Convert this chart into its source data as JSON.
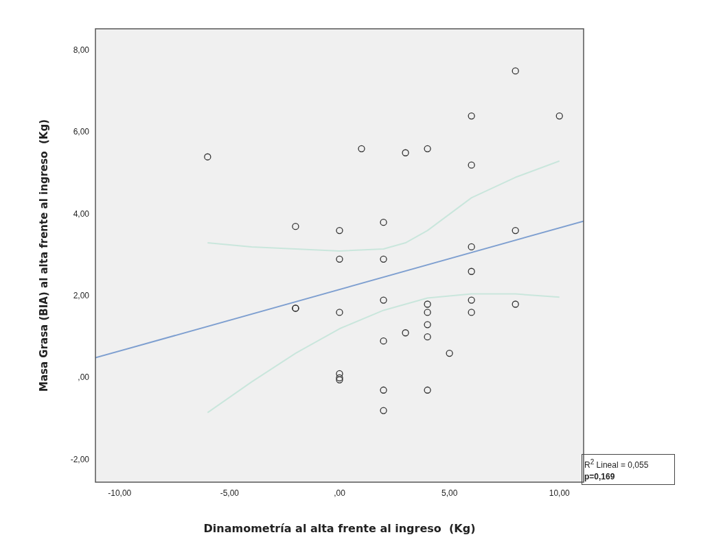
{
  "chart_data": {
    "type": "scatter",
    "xlabel": "Dinamometría al alta frente al ingreso  (Kg)",
    "ylabel": "Masa Grasa (BIA) al alta frente al ingreso  (Kg)",
    "xlim": [
      -11.1,
      11.1
    ],
    "ylim": [
      -2.55,
      8.53
    ],
    "xticks": [
      {
        "value": -10,
        "label": "-10,00"
      },
      {
        "value": -5,
        "label": "-5,00"
      },
      {
        "value": 0,
        "label": ",00"
      },
      {
        "value": 5,
        "label": "5,00"
      },
      {
        "value": 10,
        "label": "10,00"
      }
    ],
    "yticks": [
      {
        "value": -2,
        "label": "-2,00"
      },
      {
        "value": 0,
        "label": ",00"
      },
      {
        "value": 2,
        "label": "2,00"
      },
      {
        "value": 4,
        "label": "4,00"
      },
      {
        "value": 6,
        "label": "6,00"
      },
      {
        "value": 8,
        "label": "8,00"
      }
    ],
    "grid": false,
    "legend": false,
    "series": [
      {
        "color": "#333333",
        "marker": "circle",
        "x": [
          -6,
          1,
          3,
          4,
          6,
          8,
          10,
          6,
          -2,
          0,
          2,
          0,
          2,
          -2,
          -2,
          0,
          2,
          2,
          3,
          0,
          0,
          0,
          2,
          2,
          8,
          6,
          6,
          6,
          6,
          8,
          4,
          4,
          4,
          4,
          5,
          4
        ],
        "values": [
          5.4,
          5.6,
          5.5,
          5.6,
          6.4,
          7.5,
          6.4,
          5.2,
          3.7,
          3.6,
          3.8,
          2.9,
          2.9,
          1.7,
          1.7,
          1.6,
          1.9,
          0.9,
          1.1,
          0.1,
          0.0,
          -0.05,
          -0.3,
          -0.8,
          3.6,
          3.2,
          2.6,
          1.9,
          1.6,
          1.8,
          1.8,
          1.6,
          1.3,
          1.0,
          0.6,
          -0.3
        ]
      },
      {
        "type": "line",
        "color": "#7e9fd0",
        "marker": "none",
        "x": [
          -11.1,
          11.1
        ],
        "values": [
          0.49,
          3.83
        ]
      },
      {
        "type": "line",
        "color": "#c9e6dc",
        "marker": "none",
        "x": [
          -6,
          -4,
          -2,
          0,
          2,
          3,
          4,
          6,
          8,
          10
        ],
        "values": [
          3.3,
          3.2,
          3.15,
          3.1,
          3.15,
          3.3,
          3.6,
          4.4,
          4.9,
          5.3
        ]
      },
      {
        "type": "line",
        "color": "#c9e6dc",
        "marker": "none",
        "x": [
          -6,
          -4,
          -2,
          0,
          2,
          4,
          6,
          8,
          10
        ],
        "values": [
          -0.85,
          -0.1,
          0.6,
          1.2,
          1.65,
          1.95,
          2.05,
          2.05,
          1.97
        ]
      }
    ],
    "annotations": [
      "R$^{2}$ Lineal = 0,055",
      "p=0,169"
    ]
  }
}
